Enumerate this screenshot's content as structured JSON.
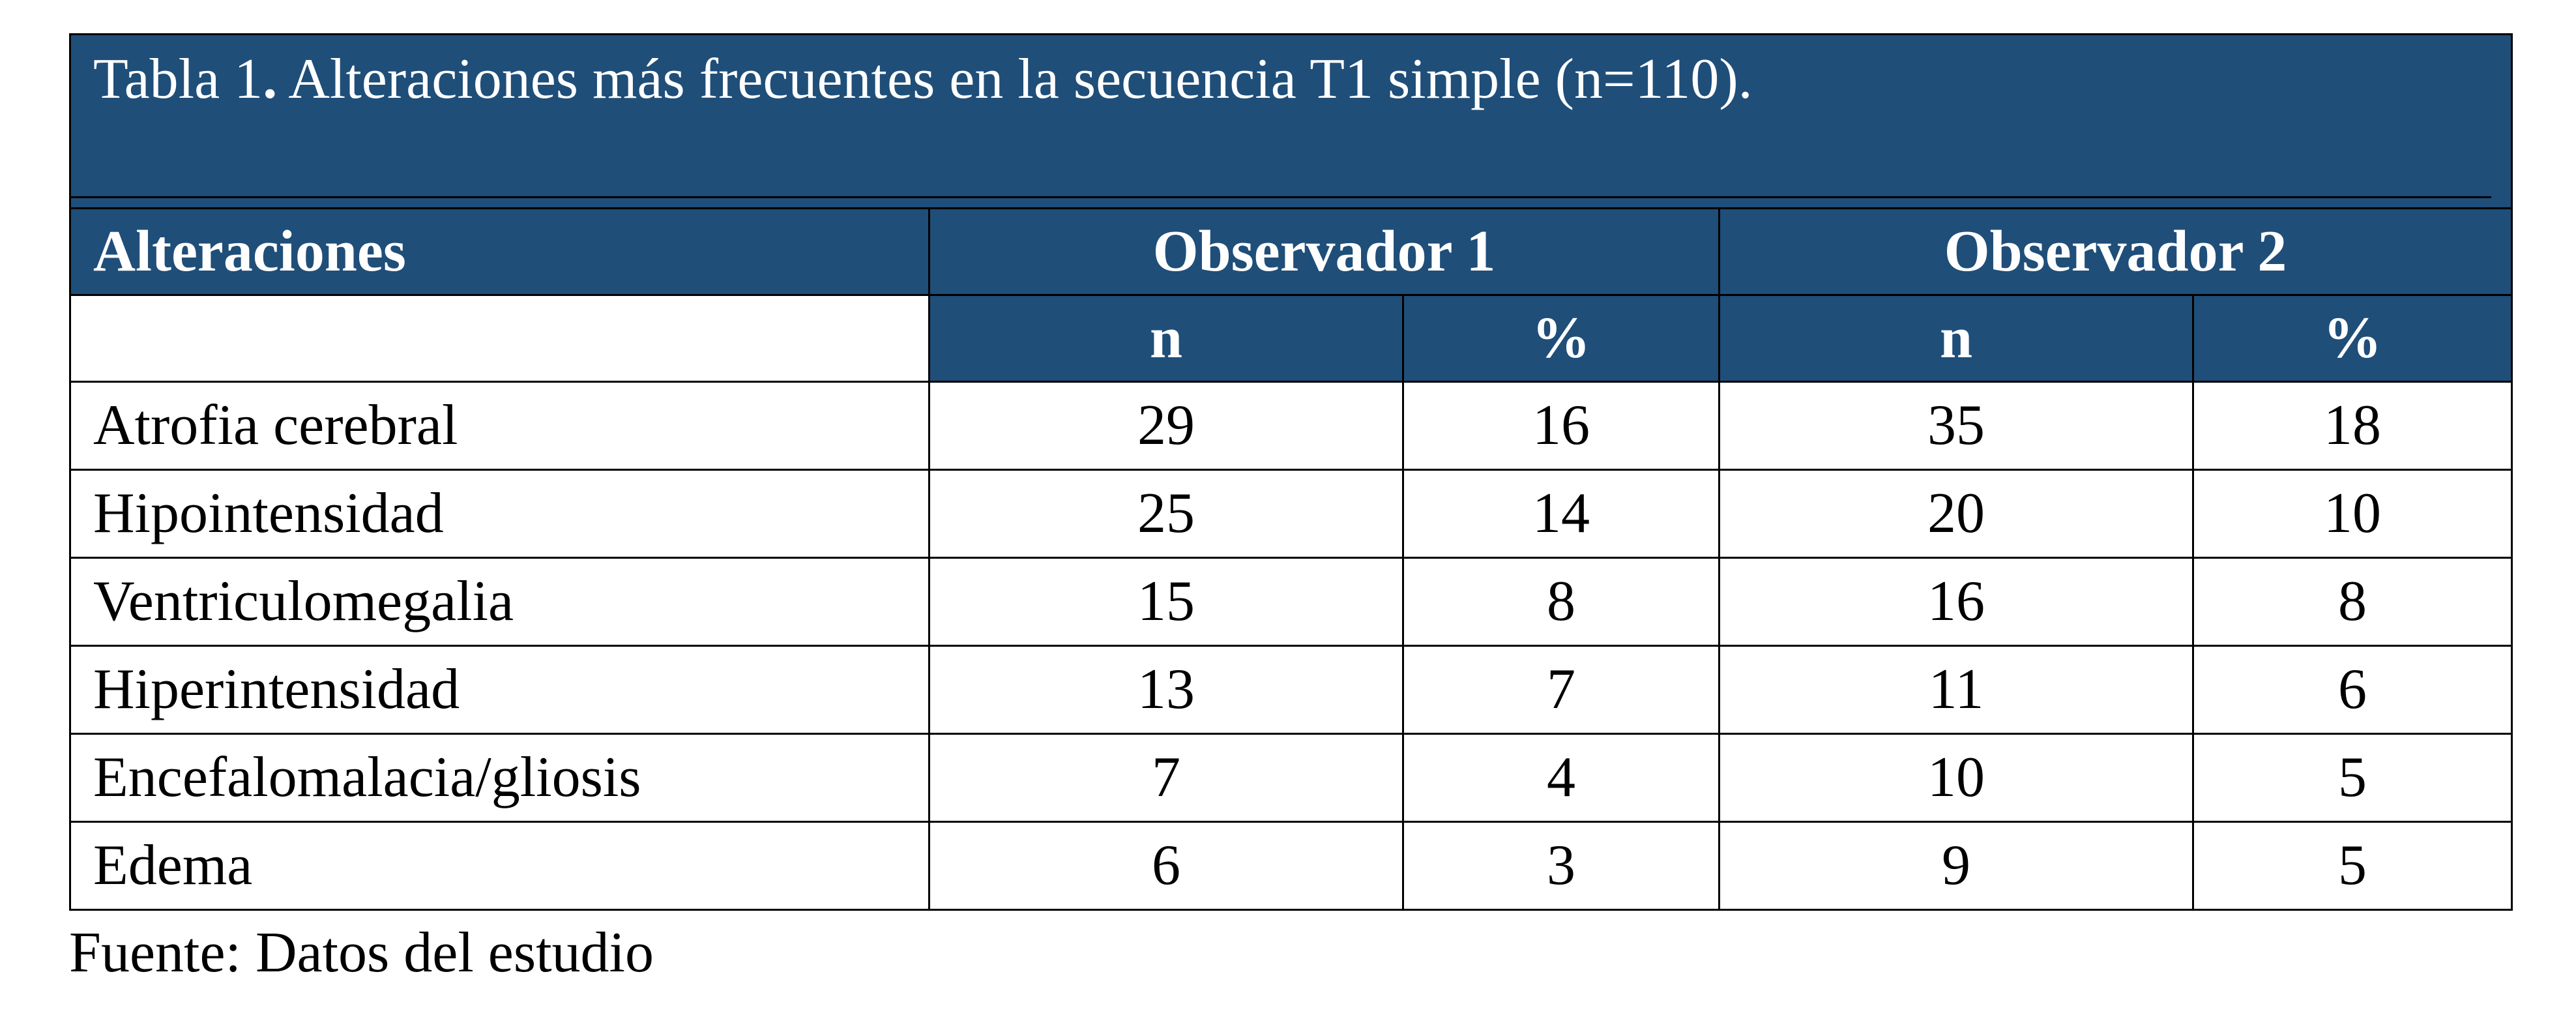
{
  "table": {
    "title_prefix": "Tabla 1",
    "title_dot": ".",
    "title_rest": " Alteraciones más frecuentes en la secuencia T1 simple (n=110).",
    "header": {
      "col_label": "Alteraciones",
      "group1": "Observador 1",
      "group2": "Observador 2",
      "sub_n1": "n",
      "sub_pct1": "%",
      "sub_n2": "n",
      "sub_pct2": "%"
    },
    "rows": [
      {
        "label": "Atrofia cerebral",
        "o1_n": "29",
        "o1_pct": "16",
        "o2_n": "35",
        "o2_pct": "18"
      },
      {
        "label": "Hipointensidad",
        "o1_n": "25",
        "o1_pct": "14",
        "o2_n": "20",
        "o2_pct": "10"
      },
      {
        "label": "Ventriculomegalia",
        "o1_n": "15",
        "o1_pct": "8",
        "o2_n": "16",
        "o2_pct": "8"
      },
      {
        "label": "Hiperintensidad",
        "o1_n": "13",
        "o1_pct": "7",
        "o2_n": "11",
        "o2_pct": "6"
      },
      {
        "label": "Encefalomalacia/gliosis",
        "o1_n": "7",
        "o1_pct": "4",
        "o2_n": "10",
        "o2_pct": "5"
      },
      {
        "label": "Edema",
        "o1_n": "6",
        "o1_pct": "3",
        "o2_n": "9",
        "o2_pct": "5"
      }
    ]
  },
  "source": "Fuente: Datos del estudio",
  "colors": {
    "header_bg": "#1f4e79",
    "header_text": "#ffffff",
    "border": "#000000"
  }
}
